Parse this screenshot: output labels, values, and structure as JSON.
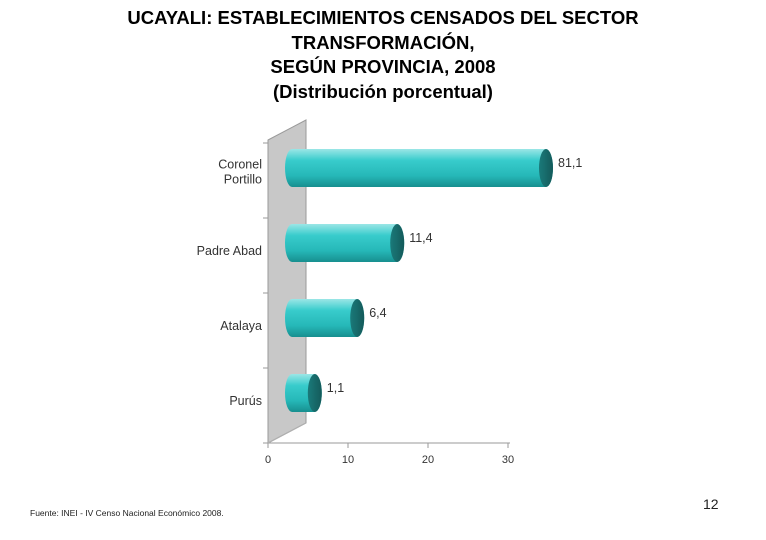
{
  "title_lines": [
    "UCAYALI: ESTABLECIMIENTOS CENSADOS DEL SECTOR",
    "TRANSFORMACIÓN,",
    "SEGÚN PROVINCIA, 2008",
    "(Distribución porcentual)"
  ],
  "chart_data": {
    "type": "bar",
    "orientation": "horizontal",
    "categories": [
      "Coronel Portillo",
      "Padre Abad",
      "Atalaya",
      "Purús"
    ],
    "category_label_lines": [
      [
        "Coronel",
        "Portillo"
      ],
      [
        "Padre Abad"
      ],
      [
        "Atalaya"
      ],
      [
        "Purús"
      ]
    ],
    "values": [
      81.1,
      11.4,
      6.4,
      1.1
    ],
    "value_labels": [
      "81,1",
      "11,4",
      "6,4",
      "1,1"
    ],
    "xticks": [
      0,
      10,
      20,
      30
    ],
    "xtick_labels": [
      "0",
      "10",
      "20",
      "30"
    ],
    "xlim": [
      0,
      30
    ],
    "bar_color": "#2fc4c4",
    "bar_dark_color": "#1e6e6e",
    "wall_color": "#c8c8c8",
    "grid": false,
    "legend": "none"
  },
  "source": "Fuente: INEI - IV Censo Nacional Económico 2008.",
  "page_number": "12"
}
